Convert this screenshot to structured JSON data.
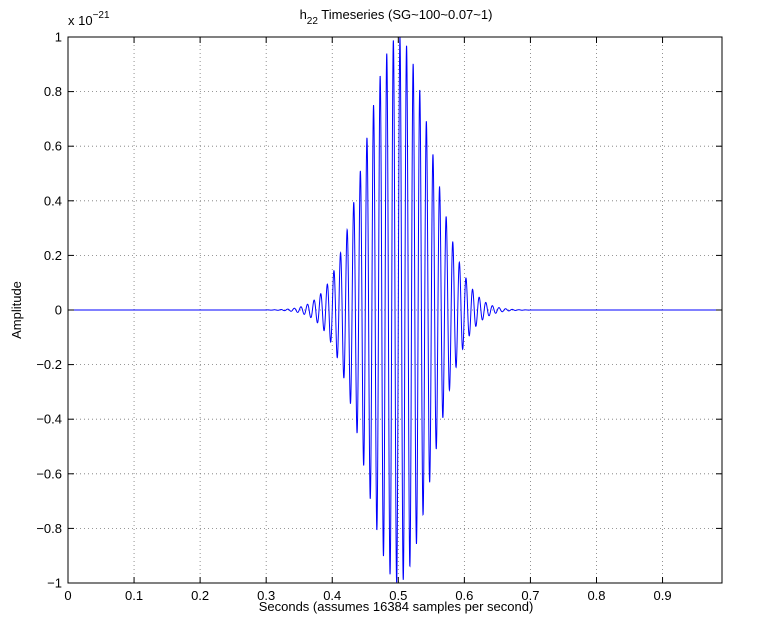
{
  "chart_data": {
    "type": "line",
    "title_main": "h",
    "title_sub": "22",
    "title_rest": " Timeseries  (SG~100~0.07~1)",
    "xlabel": "Seconds (assumes 16384 samples per second)",
    "ylabel": "Amplitude",
    "y_exponent_base": "x 10",
    "y_exponent_power": "−21",
    "xlim": [
      0,
      0.99
    ],
    "ylim": [
      -1,
      1
    ],
    "x_ticks": [
      0,
      0.1,
      0.2,
      0.3,
      0.4,
      0.5,
      0.6,
      0.7,
      0.8,
      0.9
    ],
    "x_tick_labels": [
      "0",
      "0.1",
      "0.2",
      "0.3",
      "0.4",
      "0.5",
      "0.6",
      "0.7",
      "0.8",
      "0.9"
    ],
    "y_ticks": [
      -1,
      -0.8,
      -0.6,
      -0.4,
      -0.2,
      0,
      0.2,
      0.4,
      0.6,
      0.8,
      1
    ],
    "y_tick_labels": [
      "−1",
      "−0.8",
      "−0.6",
      "−0.4",
      "−0.2",
      "0",
      "0.2",
      "0.4",
      "0.6",
      "0.8",
      "1"
    ],
    "grid": true,
    "series": [
      {
        "color": "#0000ff",
        "waveform": "sine-gaussian",
        "center_frequency_hz": 100,
        "center_time_s": 0.5,
        "envelope_width_s": 0.07,
        "peak_amplitude": 1,
        "sample_rate_hz": 16384
      }
    ]
  }
}
